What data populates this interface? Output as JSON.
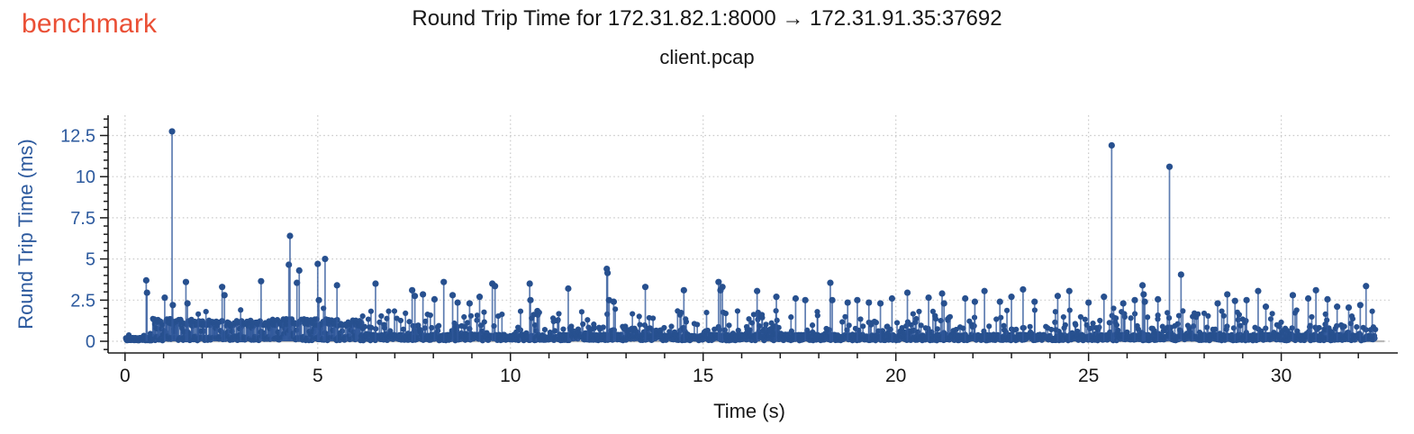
{
  "header": {
    "brand": "benchmark",
    "brand_color": "#ea4f35"
  },
  "chart_data": {
    "type": "stem",
    "title": "Round Trip Time for 172.31.82.1:8000 → 172.31.91.35:37692",
    "subtitle": "client.pcap",
    "xlabel": "Time (s)",
    "ylabel": "Round Trip Time (ms)",
    "xlim": [
      -0.44,
      32.86
    ],
    "ylim": [
      -0.71,
      13.73
    ],
    "x_ticks": {
      "values": [
        0,
        5,
        10,
        15,
        20,
        25,
        30
      ],
      "labels": [
        "0",
        "5",
        "10",
        "15",
        "20",
        "25",
        "30"
      ],
      "minor_step": 1
    },
    "y_ticks": {
      "values": [
        0,
        2.5,
        5,
        7.5,
        10,
        12.5
      ],
      "labels": [
        "0",
        "2.5",
        "5",
        "7.5",
        "10",
        "12.5"
      ],
      "minor_step": 0.5
    },
    "grid": "dotted gray lines at every major tick, both axes",
    "legend": "none",
    "data_start_s": 0.02,
    "data_end_s": 32.45,
    "colors": {
      "marker": "#27508f",
      "stem": "#31599b",
      "y_text": "#2d5a9e",
      "x_text": "#161616",
      "grid": "#cbcbcb",
      "zero_baseline": "#b9b9b9",
      "axis": "#1c1c1c"
    },
    "prominent_points": [
      [
        0.55,
        3.7
      ],
      [
        0.57,
        2.95
      ],
      [
        1.03,
        2.65
      ],
      [
        1.22,
        12.75
      ],
      [
        1.24,
        2.2
      ],
      [
        1.58,
        3.6
      ],
      [
        1.62,
        2.3
      ],
      [
        1.9,
        1.65
      ],
      [
        2.1,
        1.8
      ],
      [
        2.52,
        3.3
      ],
      [
        2.58,
        2.8
      ],
      [
        3.0,
        1.9
      ],
      [
        3.53,
        3.65
      ],
      [
        4.25,
        4.65
      ],
      [
        4.28,
        6.4
      ],
      [
        4.46,
        3.55
      ],
      [
        4.52,
        4.3
      ],
      [
        5.0,
        4.7
      ],
      [
        5.03,
        2.5
      ],
      [
        5.15,
        2.0
      ],
      [
        5.19,
        5.0
      ],
      [
        5.5,
        3.4
      ],
      [
        6.5,
        3.5
      ],
      [
        7.45,
        3.1
      ],
      [
        7.52,
        2.75
      ],
      [
        7.73,
        2.85
      ],
      [
        8.03,
        2.55
      ],
      [
        8.27,
        3.6
      ],
      [
        8.5,
        2.8
      ],
      [
        8.63,
        2.35
      ],
      [
        8.94,
        2.3
      ],
      [
        9.2,
        2.7
      ],
      [
        9.53,
        3.5
      ],
      [
        9.6,
        3.35
      ],
      [
        10.5,
        3.5
      ],
      [
        10.52,
        2.5
      ],
      [
        10.55,
        1.4
      ],
      [
        11.5,
        3.2
      ],
      [
        12.0,
        1.3
      ],
      [
        12.5,
        4.4
      ],
      [
        12.52,
        4.15
      ],
      [
        12.56,
        2.5
      ],
      [
        12.68,
        2.4
      ],
      [
        12.72,
        1.95
      ],
      [
        13.5,
        3.3
      ],
      [
        13.7,
        1.4
      ],
      [
        14.4,
        1.6
      ],
      [
        14.5,
        3.1
      ],
      [
        15.4,
        3.6
      ],
      [
        15.45,
        3.1
      ],
      [
        15.5,
        3.3
      ],
      [
        16.4,
        3.05
      ],
      [
        16.9,
        2.7
      ],
      [
        17.4,
        2.6
      ],
      [
        17.65,
        2.5
      ],
      [
        18.3,
        3.55
      ],
      [
        18.35,
        2.5
      ],
      [
        18.75,
        2.35
      ],
      [
        19.0,
        2.5
      ],
      [
        19.3,
        2.35
      ],
      [
        19.6,
        2.3
      ],
      [
        19.9,
        2.6
      ],
      [
        20.3,
        2.95
      ],
      [
        20.85,
        2.65
      ],
      [
        21.2,
        2.9
      ],
      [
        21.25,
        2.3
      ],
      [
        21.8,
        2.6
      ],
      [
        22.05,
        2.4
      ],
      [
        22.3,
        3.05
      ],
      [
        22.7,
        2.4
      ],
      [
        23.0,
        2.7
      ],
      [
        23.3,
        3.15
      ],
      [
        23.6,
        2.4
      ],
      [
        24.2,
        2.75
      ],
      [
        24.5,
        3.05
      ],
      [
        25.0,
        2.35
      ],
      [
        25.4,
        2.7
      ],
      [
        25.6,
        11.9
      ],
      [
        25.65,
        2.0
      ],
      [
        25.9,
        2.3
      ],
      [
        26.2,
        2.5
      ],
      [
        26.4,
        3.4
      ],
      [
        26.43,
        2.85
      ],
      [
        26.46,
        2.4
      ],
      [
        26.8,
        2.55
      ],
      [
        27.1,
        10.6
      ],
      [
        27.4,
        4.05
      ],
      [
        27.7,
        1.5
      ],
      [
        28.0,
        1.7
      ],
      [
        28.35,
        2.3
      ],
      [
        28.6,
        2.85
      ],
      [
        28.8,
        2.45
      ],
      [
        29.1,
        2.5
      ],
      [
        29.4,
        3.05
      ],
      [
        29.6,
        2.1
      ],
      [
        30.3,
        2.8
      ],
      [
        30.7,
        2.6
      ],
      [
        30.9,
        3.1
      ],
      [
        31.2,
        2.55
      ],
      [
        31.45,
        2.1
      ],
      [
        31.75,
        2.05
      ],
      [
        32.05,
        2.2
      ],
      [
        32.2,
        3.35
      ]
    ],
    "baseline_noise": {
      "description": "Dense unresolvable floor of ~0.05-0.45 ms samples across the whole capture; a near-continuous picket band at ~0.9-1.3 ms from ~0.7 s to ~6.1 s; scattered 0.5-1.9 ms samples elsewhere. Synthesized deterministically from these parameters.",
      "seed": 42,
      "segments": [
        {
          "from": 0.02,
          "to": 0.7,
          "step": 0.004,
          "pattern": "low",
          "low": [
            0.04,
            0.22
          ],
          "mid_prob": 0.05,
          "mid": [
            0.28,
            0.55
          ]
        },
        {
          "from": 0.7,
          "to": 6.15,
          "step": 0.012,
          "pattern": "fence",
          "low": [
            0.04,
            0.32
          ],
          "band": [
            0.92,
            1.32
          ],
          "band_prob": 0.52,
          "mid_prob": 0.12,
          "mid": [
            0.38,
            0.8
          ]
        },
        {
          "from": 6.15,
          "to": 32.45,
          "step": 0.0115,
          "pattern": "noise",
          "low": [
            0.04,
            0.42
          ],
          "mid_prob": 0.13,
          "mid": [
            0.45,
            0.95
          ],
          "high_prob": 0.075,
          "high": [
            0.9,
            1.9
          ]
        }
      ]
    }
  }
}
